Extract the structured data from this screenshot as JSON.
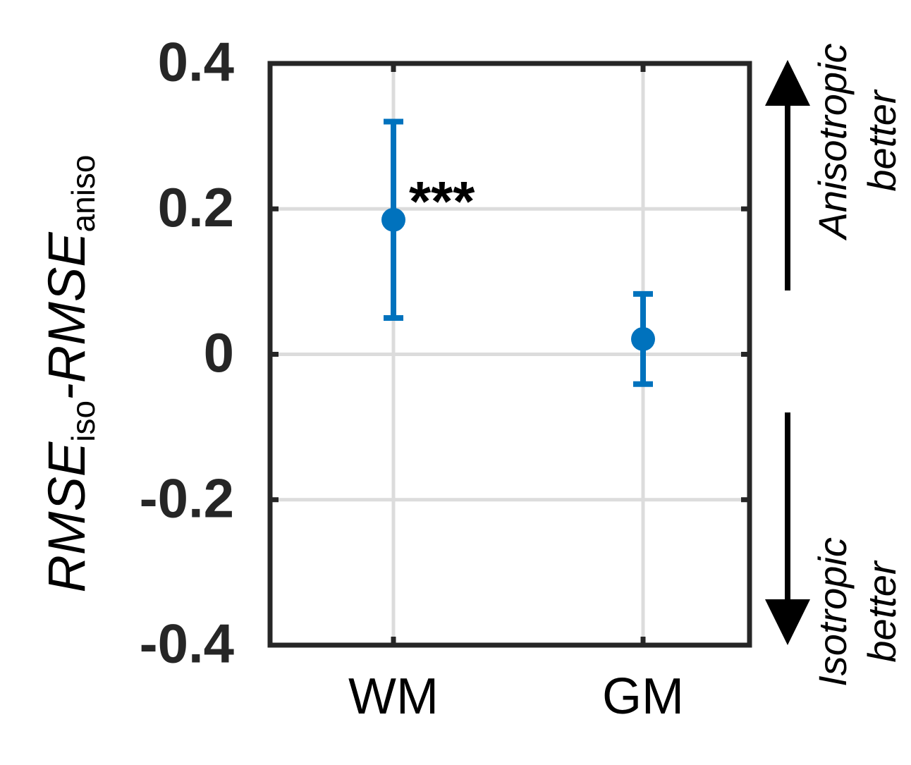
{
  "chart_data": {
    "type": "errorbar",
    "ylabel": [
      "RMSE",
      "iso",
      "-RMSE",
      "aniso"
    ],
    "categories": [
      "WM",
      "GM"
    ],
    "values": [
      0.185,
      0.021
    ],
    "errors": [
      0.135,
      0.062
    ],
    "color": "#0072bd",
    "ylim": [
      -0.4,
      0.4
    ],
    "yticks": [
      -0.4,
      -0.2,
      0,
      0.2,
      0.4
    ],
    "grid": true,
    "annotations": [
      {
        "text": "***",
        "category": 0
      }
    ],
    "upper_note": [
      "Anisotropic",
      "better"
    ],
    "lower_note": [
      "Isotropic",
      "better"
    ]
  }
}
